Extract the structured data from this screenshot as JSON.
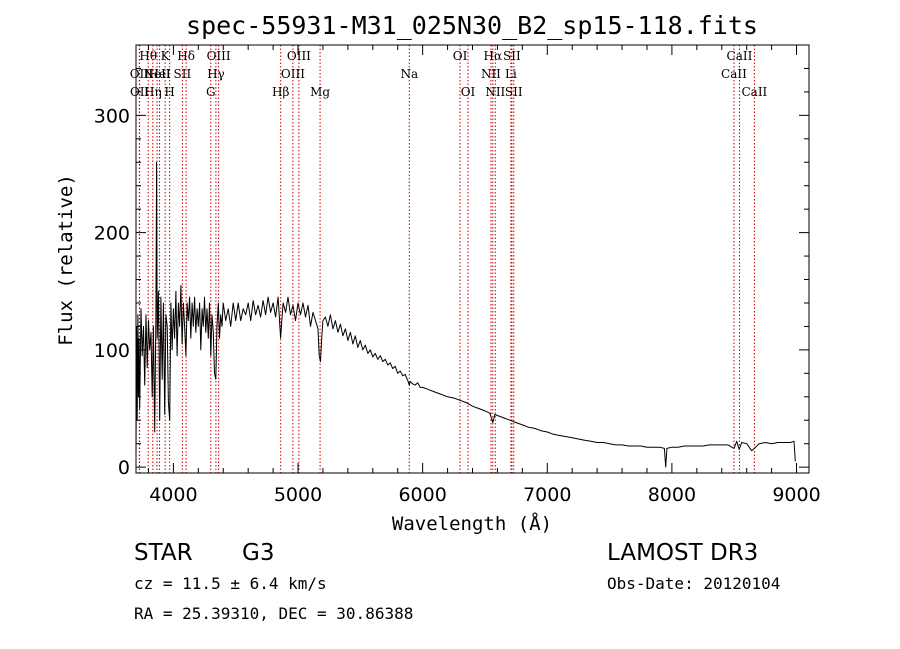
{
  "chart_data": {
    "type": "line",
    "title": "spec-55931-M31_025N30_B2_sp15-118.fits",
    "xlabel": "Wavelength (Å)",
    "ylabel": "Flux (relative)",
    "xlim": [
      3700,
      9100
    ],
    "ylim": [
      -5,
      360
    ],
    "xticks": [
      4000,
      5000,
      6000,
      7000,
      8000,
      9000
    ],
    "yticks": [
      0,
      100,
      200,
      300
    ],
    "spectrum": [
      [
        3700,
        10
      ],
      [
        3705,
        120
      ],
      [
        3710,
        40
      ],
      [
        3715,
        130
      ],
      [
        3720,
        60
      ],
      [
        3725,
        110
      ],
      [
        3730,
        50
      ],
      [
        3740,
        135
      ],
      [
        3750,
        95
      ],
      [
        3760,
        120
      ],
      [
        3770,
        70
      ],
      [
        3780,
        130
      ],
      [
        3790,
        85
      ],
      [
        3800,
        125
      ],
      [
        3810,
        100
      ],
      [
        3820,
        115
      ],
      [
        3830,
        60
      ],
      [
        3840,
        120
      ],
      [
        3850,
        30
      ],
      [
        3860,
        130
      ],
      [
        3865,
        260
      ],
      [
        3870,
        110
      ],
      [
        3880,
        150
      ],
      [
        3890,
        40
      ],
      [
        3900,
        145
      ],
      [
        3910,
        75
      ],
      [
        3920,
        140
      ],
      [
        3930,
        45
      ],
      [
        3940,
        130
      ],
      [
        3950,
        120
      ],
      [
        3960,
        55
      ],
      [
        3970,
        40
      ],
      [
        3980,
        140
      ],
      [
        3990,
        100
      ],
      [
        4000,
        135
      ],
      [
        4010,
        110
      ],
      [
        4020,
        150
      ],
      [
        4030,
        95
      ],
      [
        4040,
        140
      ],
      [
        4050,
        120
      ],
      [
        4060,
        155
      ],
      [
        4070,
        105
      ],
      [
        4080,
        140
      ],
      [
        4090,
        120
      ],
      [
        4100,
        95
      ],
      [
        4110,
        140
      ],
      [
        4120,
        125
      ],
      [
        4130,
        145
      ],
      [
        4140,
        110
      ],
      [
        4150,
        140
      ],
      [
        4160,
        120
      ],
      [
        4170,
        145
      ],
      [
        4180,
        115
      ],
      [
        4190,
        135
      ],
      [
        4200,
        120
      ],
      [
        4210,
        140
      ],
      [
        4220,
        100
      ],
      [
        4230,
        135
      ],
      [
        4240,
        120
      ],
      [
        4250,
        145
      ],
      [
        4260,
        115
      ],
      [
        4270,
        135
      ],
      [
        4280,
        110
      ],
      [
        4290,
        140
      ],
      [
        4300,
        95
      ],
      [
        4310,
        130
      ],
      [
        4320,
        115
      ],
      [
        4330,
        80
      ],
      [
        4340,
        75
      ],
      [
        4350,
        120
      ],
      [
        4360,
        140
      ],
      [
        4370,
        110
      ],
      [
        4380,
        130
      ],
      [
        4390,
        120
      ],
      [
        4400,
        140
      ],
      [
        4420,
        125
      ],
      [
        4440,
        135
      ],
      [
        4460,
        120
      ],
      [
        4480,
        140
      ],
      [
        4500,
        125
      ],
      [
        4520,
        140
      ],
      [
        4540,
        125
      ],
      [
        4560,
        135
      ],
      [
        4580,
        130
      ],
      [
        4600,
        140
      ],
      [
        4620,
        125
      ],
      [
        4640,
        142
      ],
      [
        4660,
        130
      ],
      [
        4680,
        138
      ],
      [
        4700,
        128
      ],
      [
        4720,
        142
      ],
      [
        4740,
        130
      ],
      [
        4760,
        145
      ],
      [
        4780,
        132
      ],
      [
        4800,
        140
      ],
      [
        4820,
        128
      ],
      [
        4840,
        145
      ],
      [
        4860,
        110
      ],
      [
        4870,
        125
      ],
      [
        4880,
        140
      ],
      [
        4900,
        132
      ],
      [
        4920,
        145
      ],
      [
        4940,
        130
      ],
      [
        4960,
        138
      ],
      [
        4980,
        125
      ],
      [
        5000,
        140
      ],
      [
        5020,
        130
      ],
      [
        5040,
        140
      ],
      [
        5060,
        128
      ],
      [
        5080,
        138
      ],
      [
        5100,
        120
      ],
      [
        5120,
        132
      ],
      [
        5140,
        125
      ],
      [
        5160,
        118
      ],
      [
        5170,
        95
      ],
      [
        5180,
        90
      ],
      [
        5190,
        110
      ],
      [
        5200,
        125
      ],
      [
        5220,
        128
      ],
      [
        5240,
        120
      ],
      [
        5260,
        130
      ],
      [
        5280,
        118
      ],
      [
        5300,
        125
      ],
      [
        5320,
        115
      ],
      [
        5340,
        122
      ],
      [
        5360,
        112
      ],
      [
        5380,
        118
      ],
      [
        5400,
        108
      ],
      [
        5420,
        115
      ],
      [
        5440,
        105
      ],
      [
        5460,
        112
      ],
      [
        5480,
        102
      ],
      [
        5500,
        108
      ],
      [
        5520,
        100
      ],
      [
        5540,
        104
      ],
      [
        5560,
        97
      ],
      [
        5580,
        100
      ],
      [
        5600,
        94
      ],
      [
        5620,
        97
      ],
      [
        5640,
        92
      ],
      [
        5660,
        95
      ],
      [
        5680,
        90
      ],
      [
        5700,
        92
      ],
      [
        5720,
        87
      ],
      [
        5740,
        89
      ],
      [
        5760,
        84
      ],
      [
        5780,
        86
      ],
      [
        5800,
        80
      ],
      [
        5820,
        82
      ],
      [
        5840,
        78
      ],
      [
        5860,
        79
      ],
      [
        5880,
        74
      ],
      [
        5893,
        70
      ],
      [
        5900,
        73
      ],
      [
        5920,
        71
      ],
      [
        5940,
        70
      ],
      [
        5960,
        72
      ],
      [
        5980,
        68
      ],
      [
        6000,
        68
      ],
      [
        6050,
        66
      ],
      [
        6100,
        64
      ],
      [
        6150,
        62
      ],
      [
        6200,
        60
      ],
      [
        6250,
        59
      ],
      [
        6300,
        57
      ],
      [
        6350,
        55
      ],
      [
        6400,
        52
      ],
      [
        6450,
        50
      ],
      [
        6500,
        48
      ],
      [
        6540,
        46
      ],
      [
        6563,
        38
      ],
      [
        6580,
        45
      ],
      [
        6600,
        44
      ],
      [
        6650,
        42
      ],
      [
        6700,
        40
      ],
      [
        6750,
        38
      ],
      [
        6800,
        36
      ],
      [
        6850,
        34
      ],
      [
        6900,
        33
      ],
      [
        6950,
        31
      ],
      [
        7000,
        30
      ],
      [
        7050,
        28
      ],
      [
        7100,
        27
      ],
      [
        7150,
        26
      ],
      [
        7200,
        25
      ],
      [
        7250,
        24
      ],
      [
        7300,
        23
      ],
      [
        7350,
        22
      ],
      [
        7400,
        21
      ],
      [
        7450,
        21
      ],
      [
        7500,
        20
      ],
      [
        7550,
        19
      ],
      [
        7600,
        19
      ],
      [
        7650,
        18
      ],
      [
        7700,
        18
      ],
      [
        7750,
        18
      ],
      [
        7800,
        17
      ],
      [
        7850,
        17
      ],
      [
        7900,
        17
      ],
      [
        7940,
        16
      ],
      [
        7950,
        0
      ],
      [
        7960,
        16
      ],
      [
        8000,
        17
      ],
      [
        8050,
        17
      ],
      [
        8100,
        18
      ],
      [
        8150,
        18
      ],
      [
        8200,
        18
      ],
      [
        8250,
        18
      ],
      [
        8300,
        19
      ],
      [
        8350,
        19
      ],
      [
        8400,
        19
      ],
      [
        8450,
        19
      ],
      [
        8498,
        16
      ],
      [
        8520,
        22
      ],
      [
        8540,
        15
      ],
      [
        8560,
        21
      ],
      [
        8600,
        20
      ],
      [
        8640,
        14
      ],
      [
        8662,
        16
      ],
      [
        8700,
        20
      ],
      [
        8750,
        21
      ],
      [
        8800,
        20
      ],
      [
        8850,
        21
      ],
      [
        8900,
        21
      ],
      [
        8950,
        21
      ],
      [
        8980,
        22
      ],
      [
        8990,
        5
      ]
    ],
    "emission_lines": [
      {
        "wavelength": 3727,
        "label": "OII",
        "row": 1
      },
      {
        "wavelength": 3729,
        "label": "OII",
        "row": 2
      },
      {
        "wavelength": 3798,
        "label": "Hθ",
        "row": 0
      },
      {
        "wavelength": 3835,
        "label": "Hη",
        "row": 2
      },
      {
        "wavelength": 3869,
        "label": "NeII",
        "row": 1
      },
      {
        "wavelength": 3889,
        "label": "HeI",
        "row": 1
      },
      {
        "wavelength": 3934,
        "label": "K",
        "row": 0
      },
      {
        "wavelength": 3970,
        "label": "H",
        "row": 2
      },
      {
        "wavelength": 4072,
        "label": "SII",
        "row": 1
      },
      {
        "wavelength": 4102,
        "label": "Hδ",
        "row": 0
      },
      {
        "wavelength": 4300,
        "label": "G",
        "row": 2
      },
      {
        "wavelength": 4341,
        "label": "Hγ",
        "row": 1
      },
      {
        "wavelength": 4363,
        "label": "OIII",
        "row": 0
      },
      {
        "wavelength": 4861,
        "label": "Hβ",
        "row": 2
      },
      {
        "wavelength": 4959,
        "label": "OIII",
        "row": 1
      },
      {
        "wavelength": 5007,
        "label": "OIII",
        "row": 0
      },
      {
        "wavelength": 5177,
        "label": "Mg",
        "row": 2
      },
      {
        "wavelength": 5893,
        "label": "Na",
        "row": 1
      },
      {
        "wavelength": 6300,
        "label": "OI",
        "row": 0
      },
      {
        "wavelength": 6364,
        "label": "OI",
        "row": 2
      },
      {
        "wavelength": 6548,
        "label": "NII",
        "row": 1
      },
      {
        "wavelength": 6563,
        "label": "Hα",
        "row": 0
      },
      {
        "wavelength": 6583,
        "label": "NII",
        "row": 2
      },
      {
        "wavelength": 6708,
        "label": "Li",
        "row": 1
      },
      {
        "wavelength": 6716,
        "label": "SII",
        "row": 0
      },
      {
        "wavelength": 6731,
        "label": "SII",
        "row": 2
      },
      {
        "wavelength": 8498,
        "label": "CaII",
        "row": 1
      },
      {
        "wavelength": 8542,
        "label": "CaII",
        "row": 0
      },
      {
        "wavelength": 8662,
        "label": "CaII",
        "row": 2
      }
    ]
  },
  "info": {
    "object_class": "STAR",
    "subclass": "G3",
    "survey": "LAMOST DR3",
    "redshift": "cz = 11.5 ± 6.4 km/s",
    "obs_date": "Obs-Date: 20120104",
    "coords": "RA =  25.39310, DEC =  30.86388"
  },
  "colors": {
    "spectrum": "#000000",
    "line_marker": "#cc0000"
  }
}
